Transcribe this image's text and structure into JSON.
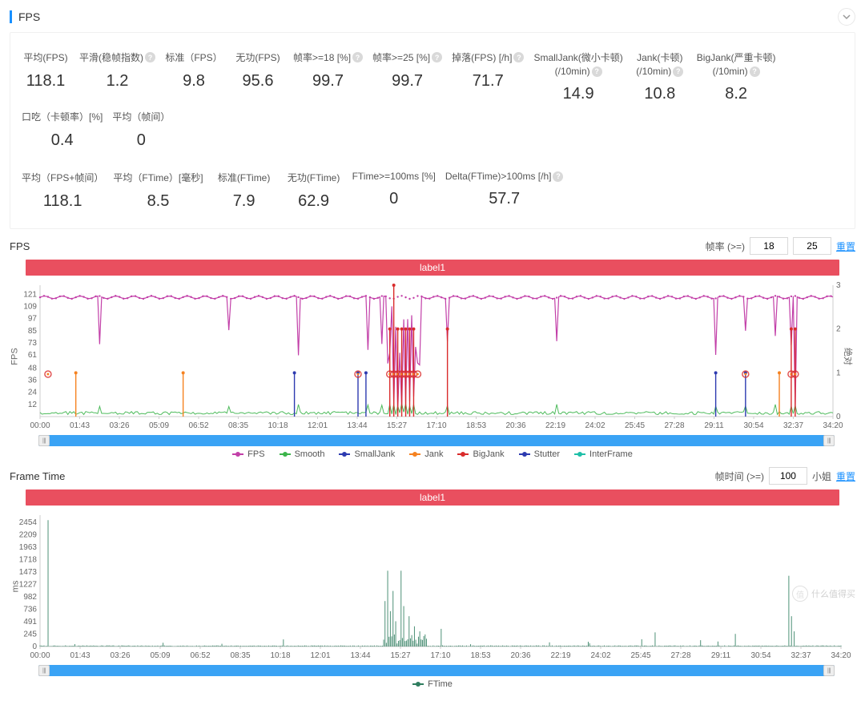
{
  "header": {
    "title": "FPS"
  },
  "stats_row1": [
    {
      "label": "平均(FPS)",
      "value": "118.1",
      "help": false
    },
    {
      "label": "平滑(稳帧指数)",
      "value": "1.2",
      "help": true
    },
    {
      "label": "标准（FPS）",
      "value": "9.8",
      "help": false
    },
    {
      "label": "无功(FPS)",
      "value": "95.6",
      "help": false
    },
    {
      "label": "帧率>=18 [%]",
      "value": "99.7",
      "help": true
    },
    {
      "label": "帧率>=25 [%]",
      "value": "99.7",
      "help": true
    },
    {
      "label": "掉落(FPS) [/h]",
      "value": "71.7",
      "help": true
    },
    {
      "label": "SmallJank(微小卡顿)(/10min)",
      "value": "14.9",
      "help": true,
      "multiline": true
    },
    {
      "label": "Jank(卡顿)(/10min)",
      "value": "10.8",
      "help": true,
      "multiline": true
    },
    {
      "label": "BigJank(严重卡顿)(/10min)",
      "value": "8.2",
      "help": true,
      "multiline": true
    },
    {
      "label": "口吃（卡顿率）[%]",
      "value": "0.4",
      "help": false
    },
    {
      "label": "平均（帧间）",
      "value": "0",
      "help": false
    }
  ],
  "stats_row2": [
    {
      "label": "平均（FPS+帧间）",
      "value": "118.1",
      "help": false
    },
    {
      "label": "平均（FTime）[毫秒]",
      "value": "8.5",
      "help": false
    },
    {
      "label": "标准(FTime)",
      "value": "7.9",
      "help": false
    },
    {
      "label": "无功(FTime)",
      "value": "62.9",
      "help": false
    },
    {
      "label": "FTime>=100ms [%]",
      "value": "0",
      "help": false
    },
    {
      "label": "Delta(FTime)>100ms [/h]",
      "value": "57.7",
      "help": true
    }
  ],
  "fps_chart": {
    "title": "FPS",
    "control_label": "帧率 (>=)",
    "input1": "18",
    "input2": "25",
    "reset": "重置",
    "banner": "label1",
    "y_left_label": "FPS",
    "y_right_label": "绝对",
    "y_left": {
      "min": 0,
      "max": 130,
      "ticks": [
        12,
        24,
        36,
        48,
        61,
        73,
        85,
        97,
        109,
        121
      ]
    },
    "y_right": {
      "min": 0,
      "max": 3,
      "ticks": [
        0,
        1,
        2,
        3
      ]
    },
    "x_ticks": [
      "00:00",
      "01:43",
      "03:26",
      "05:09",
      "06:52",
      "08:35",
      "10:18",
      "12:01",
      "13:44",
      "15:27",
      "17:10",
      "18:53",
      "20:36",
      "22:19",
      "24:02",
      "25:45",
      "27:28",
      "29:11",
      "30:54",
      "32:37",
      "34:20"
    ],
    "colors": {
      "fps": "#c23fa8",
      "smooth": "#3bb44a",
      "smalljank": "#2d3ab0",
      "jank": "#f58220",
      "bigjank": "#d92b2b",
      "stutter": "#2d3ab0",
      "interframe": "#1fbfa8",
      "grid": "#eeeeee",
      "axis": "#cccccc",
      "banner": "#e94f5f",
      "slider": "#3aa3f5"
    },
    "legend": [
      {
        "label": "FPS",
        "color": "#c23fa8"
      },
      {
        "label": "Smooth",
        "color": "#3bb44a"
      },
      {
        "label": "SmallJank",
        "color": "#2d3ab0"
      },
      {
        "label": "Jank",
        "color": "#f58220"
      },
      {
        "label": "BigJank",
        "color": "#d92b2b"
      },
      {
        "label": "Stutter",
        "color": "#2d3ab0"
      },
      {
        "label": "InterFrame",
        "color": "#1fbfa8"
      }
    ]
  },
  "ftime_chart": {
    "title": "Frame Time",
    "control_label": "帧时间 (>=)",
    "input1": "100",
    "unit": "小姐",
    "reset": "重置",
    "banner": "label1",
    "y_label": "ms",
    "y": {
      "min": 0,
      "max": 2600,
      "ticks": [
        0,
        245,
        491,
        736,
        982,
        1227,
        1473,
        1718,
        1963,
        2209,
        2454
      ]
    },
    "x_ticks": [
      "00:00",
      "01:43",
      "03:26",
      "05:09",
      "06:52",
      "08:35",
      "10:18",
      "12:01",
      "13:44",
      "15:27",
      "17:10",
      "18:53",
      "20:36",
      "22:19",
      "24:02",
      "25:45",
      "27:28",
      "29:11",
      "30:54",
      "32:37",
      "34:20"
    ],
    "color": "#2f7d5f",
    "legend": [
      {
        "label": "FTime",
        "color": "#2f7d5f"
      }
    ]
  },
  "watermark": {
    "text": "什么值得买"
  }
}
